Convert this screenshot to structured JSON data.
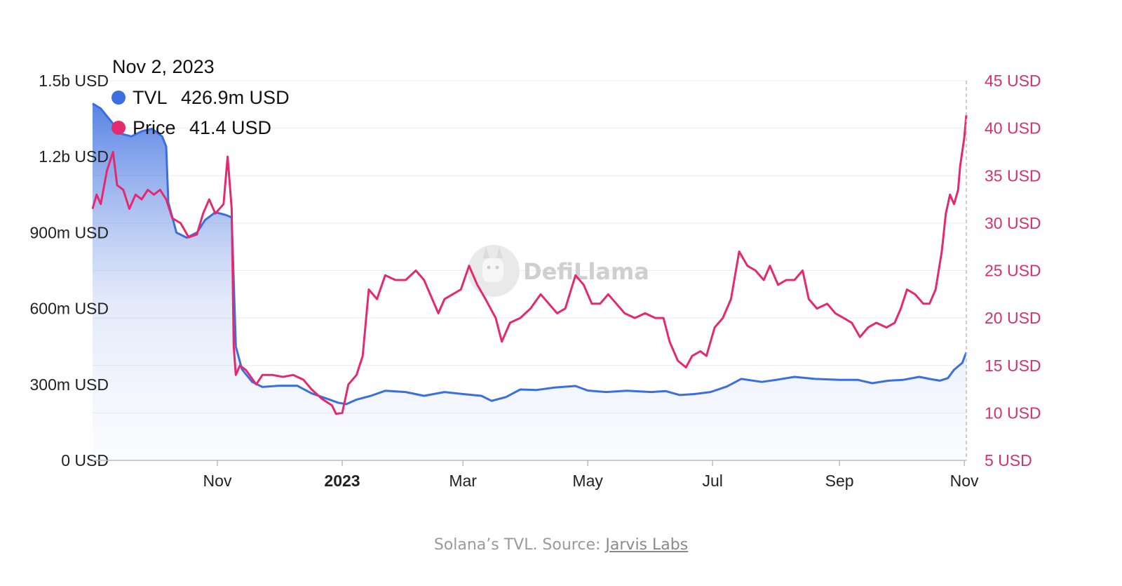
{
  "colors": {
    "tvl": "#3b6ee0",
    "price": "#e5296f",
    "right_axis": "#d63269",
    "grid": "#ececec",
    "axis": "#bbbbbb"
  },
  "tooltip": {
    "date": "Nov 2, 2023",
    "rows": [
      {
        "label": "TVL",
        "value": "426.9m USD"
      },
      {
        "label": "Price",
        "value": "41.4 USD"
      }
    ]
  },
  "watermark": {
    "text": "DefiLlama",
    "icon": "llama-icon"
  },
  "caption": {
    "text": "Solana’s TVL. Source: ",
    "link": "Jarvis Labs"
  },
  "chart_data": {
    "type": "line",
    "x_start": "2022-09-01",
    "x_end": "2023-11-02",
    "grid": true,
    "xticks": [
      {
        "label": "Nov",
        "date": "2022-11-01",
        "bold": false
      },
      {
        "label": "2023",
        "date": "2023-01-01",
        "bold": true
      },
      {
        "label": "Mar",
        "date": "2023-03-01",
        "bold": false
      },
      {
        "label": "May",
        "date": "2023-05-01",
        "bold": false
      },
      {
        "label": "Jul",
        "date": "2023-07-01",
        "bold": false
      },
      {
        "label": "Sep",
        "date": "2023-09-01",
        "bold": false
      },
      {
        "label": "Nov",
        "date": "2023-11-01",
        "bold": false
      }
    ],
    "y_left": {
      "lim": [
        0,
        1500000000
      ],
      "ticks": [
        0,
        300000000,
        600000000,
        900000000,
        1200000000,
        1500000000
      ],
      "tick_labels": [
        "0 USD",
        "300m USD",
        "600m USD",
        "900m USD",
        "1.2b USD",
        "1.5b USD"
      ]
    },
    "y_right": {
      "lim": [
        5,
        45
      ],
      "ticks": [
        5,
        10,
        15,
        20,
        25,
        30,
        35,
        40,
        45
      ],
      "tick_labels": [
        "5 USD",
        "10 USD",
        "15 USD",
        "20 USD",
        "25 USD",
        "30 USD",
        "35 USD",
        "40 USD",
        "45 USD"
      ]
    },
    "series": [
      {
        "name": "TVL",
        "axis": "left",
        "area": true,
        "points": [
          [
            "2022-09-01",
            1410000000
          ],
          [
            "2022-09-05",
            1390000000
          ],
          [
            "2022-09-10",
            1340000000
          ],
          [
            "2022-09-15",
            1290000000
          ],
          [
            "2022-09-20",
            1280000000
          ],
          [
            "2022-09-25",
            1300000000
          ],
          [
            "2022-09-30",
            1310000000
          ],
          [
            "2022-10-05",
            1280000000
          ],
          [
            "2022-10-07",
            1240000000
          ],
          [
            "2022-10-08",
            1020000000
          ],
          [
            "2022-10-12",
            900000000
          ],
          [
            "2022-10-17",
            880000000
          ],
          [
            "2022-10-22",
            900000000
          ],
          [
            "2022-10-26",
            950000000
          ],
          [
            "2022-10-31",
            980000000
          ],
          [
            "2022-11-05",
            970000000
          ],
          [
            "2022-11-08",
            960000000
          ],
          [
            "2022-11-10",
            450000000
          ],
          [
            "2022-11-13",
            360000000
          ],
          [
            "2022-11-18",
            310000000
          ],
          [
            "2022-11-23",
            290000000
          ],
          [
            "2022-12-01",
            295000000
          ],
          [
            "2022-12-10",
            295000000
          ],
          [
            "2022-12-17",
            265000000
          ],
          [
            "2022-12-24",
            245000000
          ],
          [
            "2022-12-30",
            228000000
          ],
          [
            "2023-01-03",
            222000000
          ],
          [
            "2023-01-08",
            240000000
          ],
          [
            "2023-01-15",
            255000000
          ],
          [
            "2023-01-22",
            275000000
          ],
          [
            "2023-02-01",
            270000000
          ],
          [
            "2023-02-10",
            255000000
          ],
          [
            "2023-02-20",
            270000000
          ],
          [
            "2023-03-01",
            262000000
          ],
          [
            "2023-03-10",
            255000000
          ],
          [
            "2023-03-15",
            235000000
          ],
          [
            "2023-03-22",
            250000000
          ],
          [
            "2023-03-29",
            280000000
          ],
          [
            "2023-04-06",
            278000000
          ],
          [
            "2023-04-15",
            288000000
          ],
          [
            "2023-04-25",
            294000000
          ],
          [
            "2023-05-01",
            276000000
          ],
          [
            "2023-05-10",
            270000000
          ],
          [
            "2023-05-20",
            275000000
          ],
          [
            "2023-06-01",
            270000000
          ],
          [
            "2023-06-08",
            274000000
          ],
          [
            "2023-06-15",
            258000000
          ],
          [
            "2023-06-22",
            262000000
          ],
          [
            "2023-06-30",
            270000000
          ],
          [
            "2023-07-08",
            292000000
          ],
          [
            "2023-07-15",
            322000000
          ],
          [
            "2023-07-25",
            310000000
          ],
          [
            "2023-08-01",
            318000000
          ],
          [
            "2023-08-10",
            330000000
          ],
          [
            "2023-08-20",
            322000000
          ],
          [
            "2023-09-01",
            318000000
          ],
          [
            "2023-09-10",
            318000000
          ],
          [
            "2023-09-17",
            305000000
          ],
          [
            "2023-09-25",
            315000000
          ],
          [
            "2023-10-02",
            318000000
          ],
          [
            "2023-10-10",
            330000000
          ],
          [
            "2023-10-15",
            322000000
          ],
          [
            "2023-10-20",
            315000000
          ],
          [
            "2023-10-24",
            325000000
          ],
          [
            "2023-10-27",
            358000000
          ],
          [
            "2023-10-31",
            385000000
          ],
          [
            "2023-11-02",
            426900000
          ]
        ]
      },
      {
        "name": "Price",
        "axis": "right",
        "area": false,
        "points": [
          [
            "2022-09-01",
            31.5
          ],
          [
            "2022-09-03",
            33.0
          ],
          [
            "2022-09-05",
            32.0
          ],
          [
            "2022-09-08",
            35.5
          ],
          [
            "2022-09-11",
            37.5
          ],
          [
            "2022-09-13",
            34.0
          ],
          [
            "2022-09-16",
            33.5
          ],
          [
            "2022-09-19",
            31.5
          ],
          [
            "2022-09-22",
            33.0
          ],
          [
            "2022-09-25",
            32.5
          ],
          [
            "2022-09-28",
            33.5
          ],
          [
            "2022-10-01",
            33.0
          ],
          [
            "2022-10-04",
            33.5
          ],
          [
            "2022-10-07",
            32.5
          ],
          [
            "2022-10-10",
            30.5
          ],
          [
            "2022-10-14",
            30.0
          ],
          [
            "2022-10-18",
            28.5
          ],
          [
            "2022-10-22",
            28.8
          ],
          [
            "2022-10-25",
            31.0
          ],
          [
            "2022-10-28",
            32.5
          ],
          [
            "2022-10-31",
            31.0
          ],
          [
            "2022-11-04",
            32.0
          ],
          [
            "2022-11-06",
            37.0
          ],
          [
            "2022-11-08",
            31.5
          ],
          [
            "2022-11-09",
            17.0
          ],
          [
            "2022-11-10",
            14.0
          ],
          [
            "2022-11-12",
            15.0
          ],
          [
            "2022-11-15",
            14.5
          ],
          [
            "2022-11-20",
            13.0
          ],
          [
            "2022-11-23",
            14.0
          ],
          [
            "2022-11-28",
            14.0
          ],
          [
            "2022-12-03",
            13.8
          ],
          [
            "2022-12-08",
            14.0
          ],
          [
            "2022-12-13",
            13.5
          ],
          [
            "2022-12-17",
            12.5
          ],
          [
            "2022-12-22",
            11.5
          ],
          [
            "2022-12-27",
            10.8
          ],
          [
            "2022-12-29",
            9.9
          ],
          [
            "2023-01-01",
            10.0
          ],
          [
            "2023-01-04",
            13.0
          ],
          [
            "2023-01-08",
            14.0
          ],
          [
            "2023-01-11",
            16.0
          ],
          [
            "2023-01-14",
            23.0
          ],
          [
            "2023-01-18",
            22.0
          ],
          [
            "2023-01-22",
            24.5
          ],
          [
            "2023-01-27",
            24.0
          ],
          [
            "2023-02-01",
            24.0
          ],
          [
            "2023-02-06",
            25.0
          ],
          [
            "2023-02-10",
            24.0
          ],
          [
            "2023-02-14",
            22.0
          ],
          [
            "2023-02-17",
            20.5
          ],
          [
            "2023-02-20",
            22.0
          ],
          [
            "2023-02-24",
            22.5
          ],
          [
            "2023-02-28",
            23.0
          ],
          [
            "2023-03-04",
            25.5
          ],
          [
            "2023-03-08",
            23.5
          ],
          [
            "2023-03-12",
            22.0
          ],
          [
            "2023-03-17",
            20.0
          ],
          [
            "2023-03-20",
            17.5
          ],
          [
            "2023-03-24",
            19.5
          ],
          [
            "2023-03-29",
            20.0
          ],
          [
            "2023-04-03",
            21.0
          ],
          [
            "2023-04-08",
            22.5
          ],
          [
            "2023-04-12",
            21.5
          ],
          [
            "2023-04-16",
            20.5
          ],
          [
            "2023-04-20",
            21.0
          ],
          [
            "2023-04-25",
            24.5
          ],
          [
            "2023-04-29",
            23.5
          ],
          [
            "2023-05-03",
            21.5
          ],
          [
            "2023-05-07",
            21.5
          ],
          [
            "2023-05-11",
            22.5
          ],
          [
            "2023-05-15",
            21.5
          ],
          [
            "2023-05-19",
            20.5
          ],
          [
            "2023-05-24",
            20.0
          ],
          [
            "2023-05-29",
            20.5
          ],
          [
            "2023-06-03",
            20.0
          ],
          [
            "2023-06-07",
            20.0
          ],
          [
            "2023-06-10",
            17.5
          ],
          [
            "2023-06-14",
            15.5
          ],
          [
            "2023-06-18",
            14.8
          ],
          [
            "2023-06-21",
            16.0
          ],
          [
            "2023-06-25",
            16.5
          ],
          [
            "2023-06-28",
            16.0
          ],
          [
            "2023-07-02",
            19.0
          ],
          [
            "2023-07-06",
            20.0
          ],
          [
            "2023-07-10",
            22.0
          ],
          [
            "2023-07-14",
            27.0
          ],
          [
            "2023-07-18",
            25.5
          ],
          [
            "2023-07-22",
            25.0
          ],
          [
            "2023-07-26",
            24.0
          ],
          [
            "2023-07-29",
            25.5
          ],
          [
            "2023-08-02",
            23.5
          ],
          [
            "2023-08-06",
            24.0
          ],
          [
            "2023-08-10",
            24.0
          ],
          [
            "2023-08-14",
            25.0
          ],
          [
            "2023-08-17",
            22.0
          ],
          [
            "2023-08-21",
            21.0
          ],
          [
            "2023-08-26",
            21.5
          ],
          [
            "2023-08-30",
            20.5
          ],
          [
            "2023-09-03",
            20.0
          ],
          [
            "2023-09-07",
            19.5
          ],
          [
            "2023-09-11",
            18.0
          ],
          [
            "2023-09-15",
            19.0
          ],
          [
            "2023-09-19",
            19.5
          ],
          [
            "2023-09-24",
            19.0
          ],
          [
            "2023-09-28",
            19.5
          ],
          [
            "2023-10-01",
            21.0
          ],
          [
            "2023-10-04",
            23.0
          ],
          [
            "2023-10-08",
            22.5
          ],
          [
            "2023-10-12",
            21.5
          ],
          [
            "2023-10-15",
            21.5
          ],
          [
            "2023-10-18",
            23.0
          ],
          [
            "2023-10-21",
            27.0
          ],
          [
            "2023-10-23",
            31.0
          ],
          [
            "2023-10-25",
            33.0
          ],
          [
            "2023-10-27",
            32.0
          ],
          [
            "2023-10-29",
            33.5
          ],
          [
            "2023-10-30",
            36.0
          ],
          [
            "2023-11-01",
            39.0
          ],
          [
            "2023-11-02",
            41.4
          ]
        ]
      }
    ]
  }
}
